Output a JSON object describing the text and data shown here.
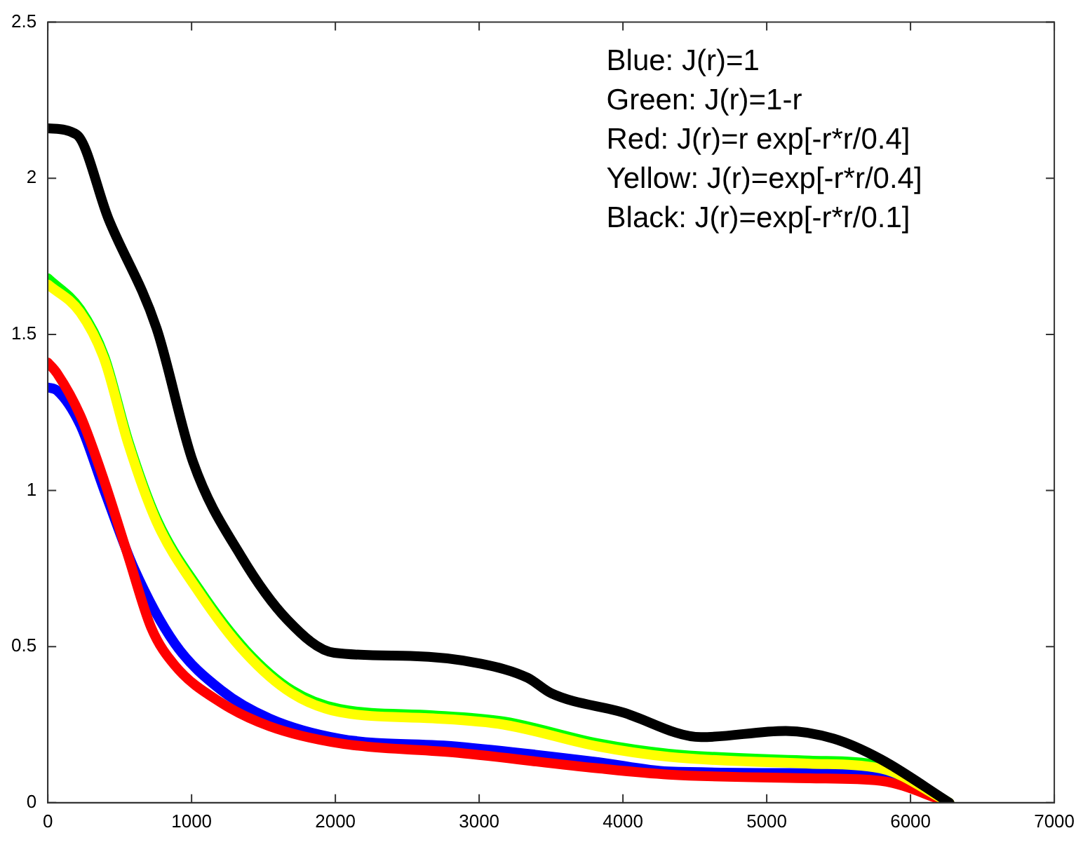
{
  "chart_data": {
    "type": "line",
    "xlim": [
      0,
      7000
    ],
    "xticks": [
      0,
      1000,
      2000,
      3000,
      4000,
      5000,
      6000,
      7000
    ],
    "ylim": [
      0,
      2.5
    ],
    "yticks": [
      0,
      0.5,
      1,
      1.5,
      2,
      2.5
    ],
    "grid": false,
    "legend": false,
    "marker": "none",
    "line_style": "solid",
    "annotations": [
      "Blue: J(r)=1",
      "Green: J(r)=1-r",
      "Red: J(r)=r exp[-r*r/0.4]",
      "Yellow: J(r)=exp[-r*r/0.4]",
      "Black: J(r)=exp[-r*r/0.1]"
    ],
    "series": [
      {
        "color": "#0000ff",
        "x": [
          0,
          65,
          226,
          393,
          600,
          883,
          1207,
          1541,
          2031,
          2846,
          3827,
          4318,
          5299,
          5790,
          6270
        ],
        "values": [
          1.33,
          1.32,
          1.21,
          1.0,
          0.75,
          0.51,
          0.36,
          0.27,
          0.205,
          0.18,
          0.13,
          0.1,
          0.095,
          0.09,
          0
        ]
      },
      {
        "color": "#ff0000",
        "x": [
          0,
          65,
          226,
          393,
          559,
          720,
          883,
          1207,
          1541,
          2031,
          2846,
          3827,
          4318,
          5299,
          5790,
          6270
        ],
        "values": [
          1.41,
          1.375,
          1.24,
          1.03,
          0.79,
          0.56,
          0.44,
          0.32,
          0.245,
          0.19,
          0.16,
          0.11,
          0.09,
          0.078,
          0.07,
          0
        ]
      },
      {
        "color": "#00ff00",
        "x": [
          0,
          226,
          393,
          559,
          756,
          1050,
          1374,
          1698,
          2031,
          2679,
          3170,
          3827,
          4318,
          5299,
          5790,
          6270
        ],
        "values": [
          1.68,
          1.58,
          1.43,
          1.16,
          0.91,
          0.685,
          0.49,
          0.36,
          0.3,
          0.28,
          0.26,
          0.19,
          0.157,
          0.135,
          0.12,
          0
        ]
      },
      {
        "color": "#ffff00",
        "x": [
          0,
          226,
          393,
          559,
          756,
          1050,
          1374,
          1698,
          2031,
          2679,
          3170,
          3827,
          4318,
          5299,
          5790,
          6270
        ],
        "values": [
          1.66,
          1.57,
          1.42,
          1.15,
          0.9,
          0.675,
          0.48,
          0.35,
          0.29,
          0.27,
          0.25,
          0.18,
          0.147,
          0.125,
          0.11,
          0
        ]
      },
      {
        "color": "#000000",
        "x": [
          0,
          200,
          422,
          756,
          1011,
          1344,
          1668,
          1992,
          2522,
          3013,
          3337,
          3503,
          3994,
          4544,
          5133,
          5466,
          5790,
          6270
        ],
        "values": [
          2.16,
          2.14,
          1.87,
          1.52,
          1.09,
          0.79,
          0.585,
          0.48,
          0.47,
          0.445,
          0.4,
          0.35,
          0.29,
          0.21,
          0.23,
          0.205,
          0.14,
          0
        ]
      }
    ]
  }
}
